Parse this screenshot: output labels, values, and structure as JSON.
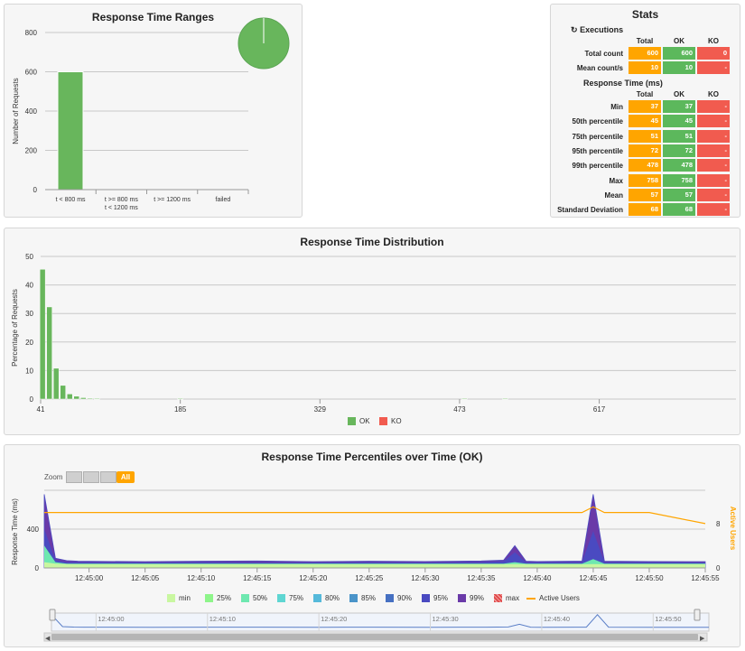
{
  "ranges_chart": {
    "title": "Response Time Ranges",
    "ylabel": "Number of Requests",
    "yticks": [
      "0",
      "200",
      "400",
      "600",
      "800"
    ],
    "categories_line1": [
      "t < 800 ms",
      "t >= 800 ms",
      "t >= 1200 ms",
      "failed"
    ],
    "categories_line2": [
      "",
      "t < 1200 ms",
      "",
      ""
    ],
    "chart_data": {
      "type": "bar",
      "categories": [
        "t < 800 ms",
        "t >= 800 ms t < 1200 ms",
        "t >= 1200 ms",
        "failed"
      ],
      "values": [
        600,
        0,
        0,
        0
      ],
      "ylabel": "Number of Requests",
      "ylim": [
        0,
        800
      ],
      "title": "Response Time Ranges"
    },
    "pie": {
      "values": [
        600,
        0,
        0,
        0
      ],
      "color": "#68b65c"
    }
  },
  "stats": {
    "title": "Stats",
    "executions_title": "Executions",
    "rt_title": "Response Time (ms)",
    "col_total": "Total",
    "col_ok": "OK",
    "col_ko": "KO",
    "exec_rows": [
      {
        "label": "Total count",
        "total": "600",
        "ok": "600",
        "ko": "0"
      },
      {
        "label": "Mean count/s",
        "total": "10",
        "ok": "10",
        "ko": "-"
      }
    ],
    "rt_rows": [
      {
        "label": "Min",
        "total": "37",
        "ok": "37",
        "ko": "-"
      },
      {
        "label": "50th percentile",
        "total": "45",
        "ok": "45",
        "ko": "-"
      },
      {
        "label": "75th percentile",
        "total": "51",
        "ok": "51",
        "ko": "-"
      },
      {
        "label": "95th percentile",
        "total": "72",
        "ok": "72",
        "ko": "-"
      },
      {
        "label": "99th percentile",
        "total": "478",
        "ok": "478",
        "ko": "-"
      },
      {
        "label": "Max",
        "total": "758",
        "ok": "758",
        "ko": "-"
      },
      {
        "label": "Mean",
        "total": "57",
        "ok": "57",
        "ko": "-"
      },
      {
        "label": "Standard Deviation",
        "total": "68",
        "ok": "68",
        "ko": "-"
      }
    ]
  },
  "distribution": {
    "title": "Response Time Distribution",
    "ylabel": "Percentage of Requests",
    "yticks": [
      "0",
      "10",
      "20",
      "30",
      "40",
      "50"
    ],
    "xticks": [
      "41",
      "185",
      "329",
      "473",
      "617"
    ],
    "legend_ok": "OK",
    "legend_ko": "KO",
    "chart_data": {
      "type": "bar",
      "ylabel": "Percentage of Requests",
      "ylim": [
        0,
        50
      ],
      "xlim": [
        41,
        758
      ],
      "series": [
        {
          "name": "OK",
          "x": [
            43,
            50,
            57,
            64,
            71,
            78,
            85,
            92,
            99,
            185,
            478,
            520
          ],
          "values": [
            45.5,
            32.3,
            10.8,
            4.8,
            1.8,
            1.0,
            0.5,
            0.3,
            0.2,
            0.2,
            0.2,
            0.2
          ]
        },
        {
          "name": "KO",
          "x": [],
          "values": []
        }
      ],
      "colors": {
        "OK": "#68b65c",
        "KO": "#f15b4f"
      }
    }
  },
  "percentiles": {
    "title": "Response Time Percentiles over Time (OK)",
    "zoom_label": "Zoom",
    "zoom_all": "All",
    "ylabel_left": "Response Time (ms)",
    "ylabel_right": "Active Users",
    "yticks_left": [
      "0",
      "400"
    ],
    "yticks_right": [
      "0",
      "8"
    ],
    "xticks": [
      "12:45:00",
      "12:45:05",
      "12:45:10",
      "12:45:15",
      "12:45:20",
      "12:45:25",
      "12:45:30",
      "12:45:35",
      "12:45:40",
      "12:45:45",
      "12:45:50",
      "12:45:55"
    ],
    "navigator_ticks": [
      "12:45:00",
      "12:45:10",
      "12:45:20",
      "12:45:30",
      "12:45:40",
      "12:45:50"
    ],
    "legend": [
      {
        "label": "min",
        "color": "#c9f7a0"
      },
      {
        "label": "25%",
        "color": "#8ef58a"
      },
      {
        "label": "50%",
        "color": "#6ee8b0"
      },
      {
        "label": "75%",
        "color": "#5fd6d2"
      },
      {
        "label": "80%",
        "color": "#55b9da"
      },
      {
        "label": "85%",
        "color": "#4a94c9"
      },
      {
        "label": "90%",
        "color": "#4670c2"
      },
      {
        "label": "95%",
        "color": "#4a4ac1"
      },
      {
        "label": "99%",
        "color": "#6a3aa8"
      },
      {
        "label": "max",
        "color": "#e04c4c"
      },
      {
        "label": "Active Users",
        "color": "#ffa500"
      }
    ],
    "chart_data": {
      "type": "area",
      "x": [
        "12:44:56",
        "12:44:57",
        "12:44:58",
        "12:44:59",
        "12:45:00",
        "12:45:05",
        "12:45:10",
        "12:45:15",
        "12:45:20",
        "12:45:25",
        "12:45:30",
        "12:45:35",
        "12:45:37",
        "12:45:38",
        "12:45:39",
        "12:45:40",
        "12:45:44",
        "12:45:45",
        "12:45:46",
        "12:45:50",
        "12:45:55"
      ],
      "series": [
        {
          "name": "min",
          "values": [
            60,
            45,
            40,
            38,
            38,
            38,
            38,
            38,
            38,
            38,
            38,
            38,
            38,
            40,
            38,
            38,
            38,
            40,
            38,
            38,
            38
          ]
        },
        {
          "name": "50%",
          "values": [
            230,
            60,
            45,
            45,
            45,
            44,
            45,
            45,
            44,
            45,
            45,
            45,
            45,
            60,
            45,
            45,
            45,
            90,
            45,
            45,
            45
          ]
        },
        {
          "name": "95%",
          "values": [
            400,
            80,
            60,
            60,
            58,
            55,
            60,
            55,
            55,
            58,
            55,
            60,
            70,
            160,
            60,
            58,
            60,
            380,
            60,
            58,
            55
          ]
        },
        {
          "name": "max",
          "values": [
            758,
            100,
            75,
            70,
            68,
            65,
            70,
            72,
            65,
            70,
            66,
            72,
            80,
            230,
            70,
            66,
            70,
            758,
            70,
            66,
            65
          ]
        },
        {
          "name": "Active Users",
          "values": [
            10,
            10,
            10,
            10,
            10,
            10,
            10,
            10,
            10,
            10,
            10,
            10,
            10,
            10,
            10,
            10,
            10,
            11,
            10,
            10,
            8
          ]
        }
      ],
      "ylabel": "Response Time (ms)",
      "y2label": "Active Users"
    }
  }
}
